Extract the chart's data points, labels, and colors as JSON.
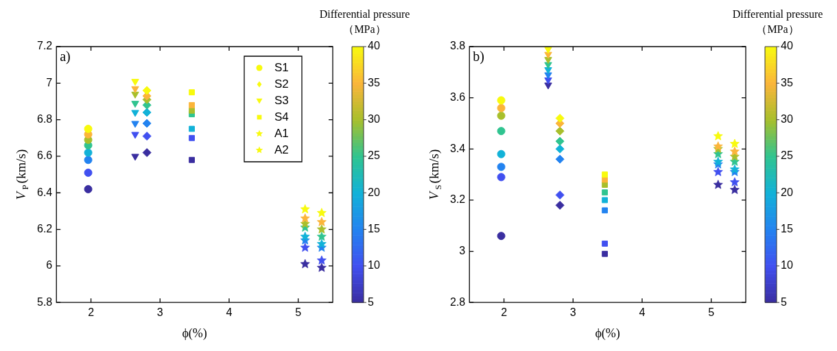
{
  "chart_data": [
    {
      "type": "scatter",
      "annotations": [
        "a)"
      ],
      "xlabel": "ϕ(%)",
      "ylabel": "V$_{P}$(km/s)",
      "clabel": "Differential pressure\n（MPa）",
      "clim": [
        5,
        40
      ],
      "cticks": [
        5,
        10,
        15,
        20,
        25,
        30,
        35,
        40
      ],
      "xlim": [
        1.5,
        5.5
      ],
      "xticks": [
        2,
        3,
        4,
        5
      ],
      "ylim": [
        5.8,
        7.2
      ],
      "yticks": [
        5.8,
        6,
        6.2,
        6.4,
        6.6,
        6.8,
        7,
        7.2
      ],
      "legend": "top right",
      "series": [
        {
          "name": "S1",
          "marker": "circle",
          "x": [
            1.96,
            1.96,
            1.96,
            1.96,
            1.96,
            1.96,
            1.96,
            1.96
          ],
          "values": [
            6.42,
            6.51,
            6.58,
            6.62,
            6.66,
            6.69,
            6.72,
            6.75
          ],
          "cvalues": [
            5,
            10,
            15,
            20,
            25,
            30,
            35,
            40
          ],
          "colors": [
            "#3a2ea0",
            "#4150f0",
            "#2383f0",
            "#12b2d8",
            "#30c490",
            "#a8bf2c",
            "#fbb53a",
            "#f8fa0e"
          ]
        },
        {
          "name": "S2",
          "marker": "diamond",
          "x": [
            2.81,
            2.81,
            2.81,
            2.81,
            2.81,
            2.81,
            2.81,
            2.81
          ],
          "values": [
            6.62,
            6.71,
            6.78,
            6.84,
            6.88,
            6.91,
            6.93,
            6.96
          ],
          "cvalues": [
            5,
            10,
            15,
            20,
            25,
            30,
            35,
            40
          ],
          "colors": [
            "#3a2ea0",
            "#4150f0",
            "#2383f0",
            "#12b2d8",
            "#30c490",
            "#a8bf2c",
            "#fbb53a",
            "#f8fa0e"
          ]
        },
        {
          "name": "S3",
          "marker": "triangle-down",
          "x": [
            2.64,
            2.64,
            2.64,
            2.64,
            2.64,
            2.64,
            2.64,
            2.64
          ],
          "values": [
            6.6,
            6.72,
            6.78,
            6.84,
            6.89,
            6.94,
            6.97,
            7.01
          ],
          "cvalues": [
            5,
            10,
            15,
            20,
            25,
            30,
            35,
            40
          ],
          "colors": [
            "#3a2ea0",
            "#4150f0",
            "#2383f0",
            "#12b2d8",
            "#30c490",
            "#a8bf2c",
            "#fbb53a",
            "#f8fa0e"
          ]
        },
        {
          "name": "S4",
          "marker": "square",
          "x": [
            3.46,
            3.46,
            3.46,
            3.46,
            3.46,
            3.46,
            3.46
          ],
          "values": [
            6.58,
            6.7,
            6.75,
            6.83,
            6.85,
            6.88,
            6.95
          ],
          "cvalues": [
            5,
            10,
            20,
            25,
            30,
            35,
            40
          ],
          "colors": [
            "#3a2ea0",
            "#4150f0",
            "#12b2d8",
            "#30c490",
            "#a8bf2c",
            "#fbb53a",
            "#f8fa0e"
          ]
        },
        {
          "name": "A1",
          "marker": "star",
          "x": [
            5.34,
            5.34,
            5.34,
            5.34,
            5.34,
            5.34,
            5.34,
            5.34
          ],
          "values": [
            5.99,
            6.03,
            6.1,
            6.12,
            6.16,
            6.2,
            6.24,
            6.29
          ],
          "cvalues": [
            5,
            10,
            15,
            20,
            25,
            30,
            35,
            40
          ],
          "colors": [
            "#3a2ea0",
            "#4150f0",
            "#2383f0",
            "#12b2d8",
            "#30c490",
            "#a8bf2c",
            "#fbb53a",
            "#f8fa0e"
          ]
        },
        {
          "name": "A2",
          "marker": "star",
          "x": [
            5.1,
            5.1,
            5.1,
            5.1,
            5.1,
            5.1,
            5.1,
            5.1
          ],
          "values": [
            6.01,
            6.1,
            6.14,
            6.16,
            6.21,
            6.23,
            6.26,
            6.31
          ],
          "cvalues": [
            5,
            10,
            15,
            20,
            25,
            30,
            35,
            40
          ],
          "colors": [
            "#3a2ea0",
            "#4150f0",
            "#2383f0",
            "#12b2d8",
            "#30c490",
            "#a8bf2c",
            "#fbb53a",
            "#f8fa0e"
          ]
        }
      ]
    },
    {
      "type": "scatter",
      "annotations": [
        "b)"
      ],
      "xlabel": "ϕ(%)",
      "ylabel": "V$_{S}$(km/s)",
      "clabel": "Differential pressure\n（MPa）",
      "clim": [
        5,
        40
      ],
      "cticks": [
        5,
        10,
        15,
        20,
        25,
        30,
        35,
        40
      ],
      "xlim": [
        1.5,
        5.5
      ],
      "xticks": [
        2,
        3,
        4,
        5
      ],
      "ylim": [
        2.8,
        3.8
      ],
      "yticks": [
        2.8,
        3,
        3.2,
        3.4,
        3.6,
        3.8
      ],
      "series": [
        {
          "marker": "circle",
          "x": [
            1.96,
            1.96,
            1.96,
            1.96,
            1.96,
            1.96,
            1.96,
            1.96
          ],
          "values": [
            3.06,
            3.29,
            3.33,
            3.38,
            3.47,
            3.53,
            3.56,
            3.59
          ],
          "cvalues": [
            5,
            10,
            15,
            20,
            25,
            30,
            35,
            40
          ],
          "colors": [
            "#3a2ea0",
            "#4150f0",
            "#2383f0",
            "#12b2d8",
            "#30c490",
            "#a8bf2c",
            "#fbb53a",
            "#f8fa0e"
          ]
        },
        {
          "marker": "diamond",
          "x": [
            2.81,
            2.81,
            2.81,
            2.81,
            2.81,
            2.81,
            2.81,
            2.81
          ],
          "values": [
            3.18,
            3.22,
            3.36,
            3.4,
            3.43,
            3.47,
            3.5,
            3.52
          ],
          "cvalues": [
            5,
            10,
            15,
            20,
            25,
            30,
            35,
            40
          ],
          "colors": [
            "#3a2ea0",
            "#4150f0",
            "#2383f0",
            "#12b2d8",
            "#30c490",
            "#a8bf2c",
            "#fbb53a",
            "#f8fa0e"
          ]
        },
        {
          "marker": "triangle-down",
          "x": [
            2.64,
            2.64,
            2.64,
            2.64,
            2.64,
            2.64,
            2.64,
            2.64
          ],
          "values": [
            3.65,
            3.67,
            3.69,
            3.71,
            3.73,
            3.75,
            3.77,
            3.79
          ],
          "cvalues": [
            5,
            10,
            15,
            20,
            25,
            30,
            35,
            40
          ],
          "colors": [
            "#3a2ea0",
            "#4150f0",
            "#2383f0",
            "#12b2d8",
            "#30c490",
            "#a8bf2c",
            "#fbb53a",
            "#f8fa0e"
          ]
        },
        {
          "marker": "square",
          "x": [
            3.46,
            3.46,
            3.46,
            3.46,
            3.46,
            3.46,
            3.46,
            3.46
          ],
          "values": [
            2.99,
            3.03,
            3.16,
            3.2,
            3.23,
            3.26,
            3.28,
            3.3
          ],
          "cvalues": [
            5,
            10,
            15,
            20,
            25,
            30,
            35,
            40
          ],
          "colors": [
            "#3a2ea0",
            "#4150f0",
            "#2383f0",
            "#12b2d8",
            "#30c490",
            "#a8bf2c",
            "#fbb53a",
            "#f8fa0e"
          ]
        },
        {
          "marker": "star",
          "x": [
            5.34,
            5.34,
            5.34,
            5.34,
            5.34,
            5.34,
            5.34,
            5.34
          ],
          "values": [
            3.24,
            3.27,
            3.31,
            3.32,
            3.35,
            3.37,
            3.39,
            3.42
          ],
          "cvalues": [
            5,
            10,
            15,
            20,
            25,
            30,
            35,
            40
          ],
          "colors": [
            "#3a2ea0",
            "#4150f0",
            "#2383f0",
            "#12b2d8",
            "#30c490",
            "#a8bf2c",
            "#fbb53a",
            "#f8fa0e"
          ]
        },
        {
          "marker": "star",
          "x": [
            5.1,
            5.1,
            5.1,
            5.1,
            5.1,
            5.1,
            5.1,
            5.1
          ],
          "values": [
            3.26,
            3.31,
            3.34,
            3.35,
            3.38,
            3.4,
            3.41,
            3.45
          ],
          "cvalues": [
            5,
            10,
            15,
            20,
            25,
            30,
            35,
            40
          ],
          "colors": [
            "#3a2ea0",
            "#4150f0",
            "#2383f0",
            "#12b2d8",
            "#30c490",
            "#a8bf2c",
            "#fbb53a",
            "#f8fa0e"
          ]
        }
      ]
    }
  ]
}
